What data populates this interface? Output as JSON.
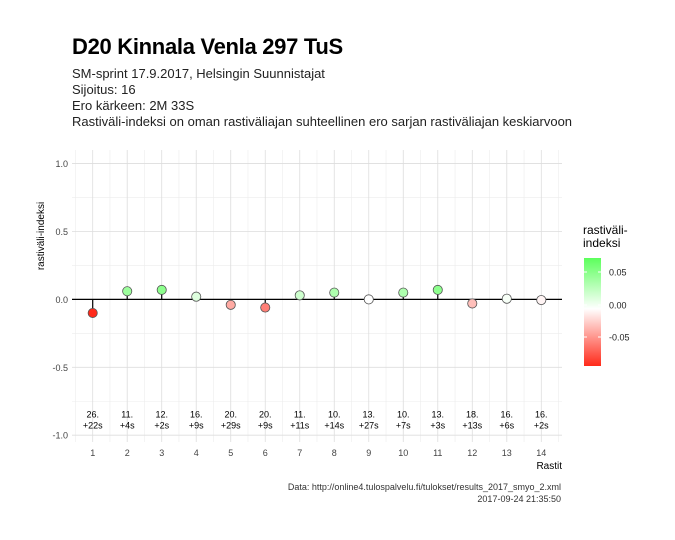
{
  "header": {
    "title": "D20 Kinnala Venla 297 TuS",
    "subtitle_lines": [
      "SM-sprint 17.9.2017, Helsingin Suunnistajat",
      "Sijoitus: 16",
      "Ero kärkeen: 2M 33S",
      "Rastiväli-indeksi on oman rastiväliajan suhteellinen ero sarjan rastiväliajan keskiarvoon"
    ]
  },
  "caption": {
    "line1": "Data: http://online4.tulospalvelu.fi/tulokset/results_2017_smyo_2.xml",
    "line2": "2017-09-24 21:35:50"
  },
  "legend": {
    "title_line1": "rastiväli-",
    "title_line2": "indeksi",
    "ticks": [
      "0.05",
      "0.00",
      "-0.05"
    ],
    "colors": {
      "high": "#5cff5c",
      "mid": "#ffffff",
      "low": "#ff2a1a"
    }
  },
  "chart_data": {
    "type": "scatter",
    "xlabel": "Rastit",
    "ylabel": "rastiväli-indeksi",
    "ylim": [
      -1.05,
      1.1
    ],
    "xlim": [
      0.4,
      14.6
    ],
    "y_ticks": [
      "1.0",
      "0.5",
      "0.0",
      "-0.5",
      "-1.0"
    ],
    "x": [
      1,
      2,
      3,
      4,
      5,
      6,
      7,
      8,
      9,
      10,
      11,
      12,
      13,
      14
    ],
    "x_tick_labels": [
      "1",
      "2",
      "3",
      "4",
      "5",
      "6",
      "7",
      "8",
      "9",
      "10",
      "11",
      "12",
      "13",
      "14"
    ],
    "y": [
      -0.1,
      0.06,
      0.07,
      0.02,
      -0.04,
      -0.06,
      0.03,
      0.05,
      0.0,
      0.05,
      0.07,
      -0.03,
      0.005,
      -0.005
    ],
    "point_labels": [
      [
        "26.",
        "+22s"
      ],
      [
        "11.",
        "+4s"
      ],
      [
        "12.",
        "+2s"
      ],
      [
        "16.",
        "+9s"
      ],
      [
        "20.",
        "+29s"
      ],
      [
        "20.",
        "+9s"
      ],
      [
        "11.",
        "+11s"
      ],
      [
        "10.",
        "+14s"
      ],
      [
        "13.",
        "+27s"
      ],
      [
        "10.",
        "+7s"
      ],
      [
        "13.",
        "+3s"
      ],
      [
        "18.",
        "+13s"
      ],
      [
        "16.",
        "+6s"
      ],
      [
        "16.",
        "+2s"
      ]
    ],
    "label_y": -0.9,
    "grid": true,
    "baseline": 0
  }
}
